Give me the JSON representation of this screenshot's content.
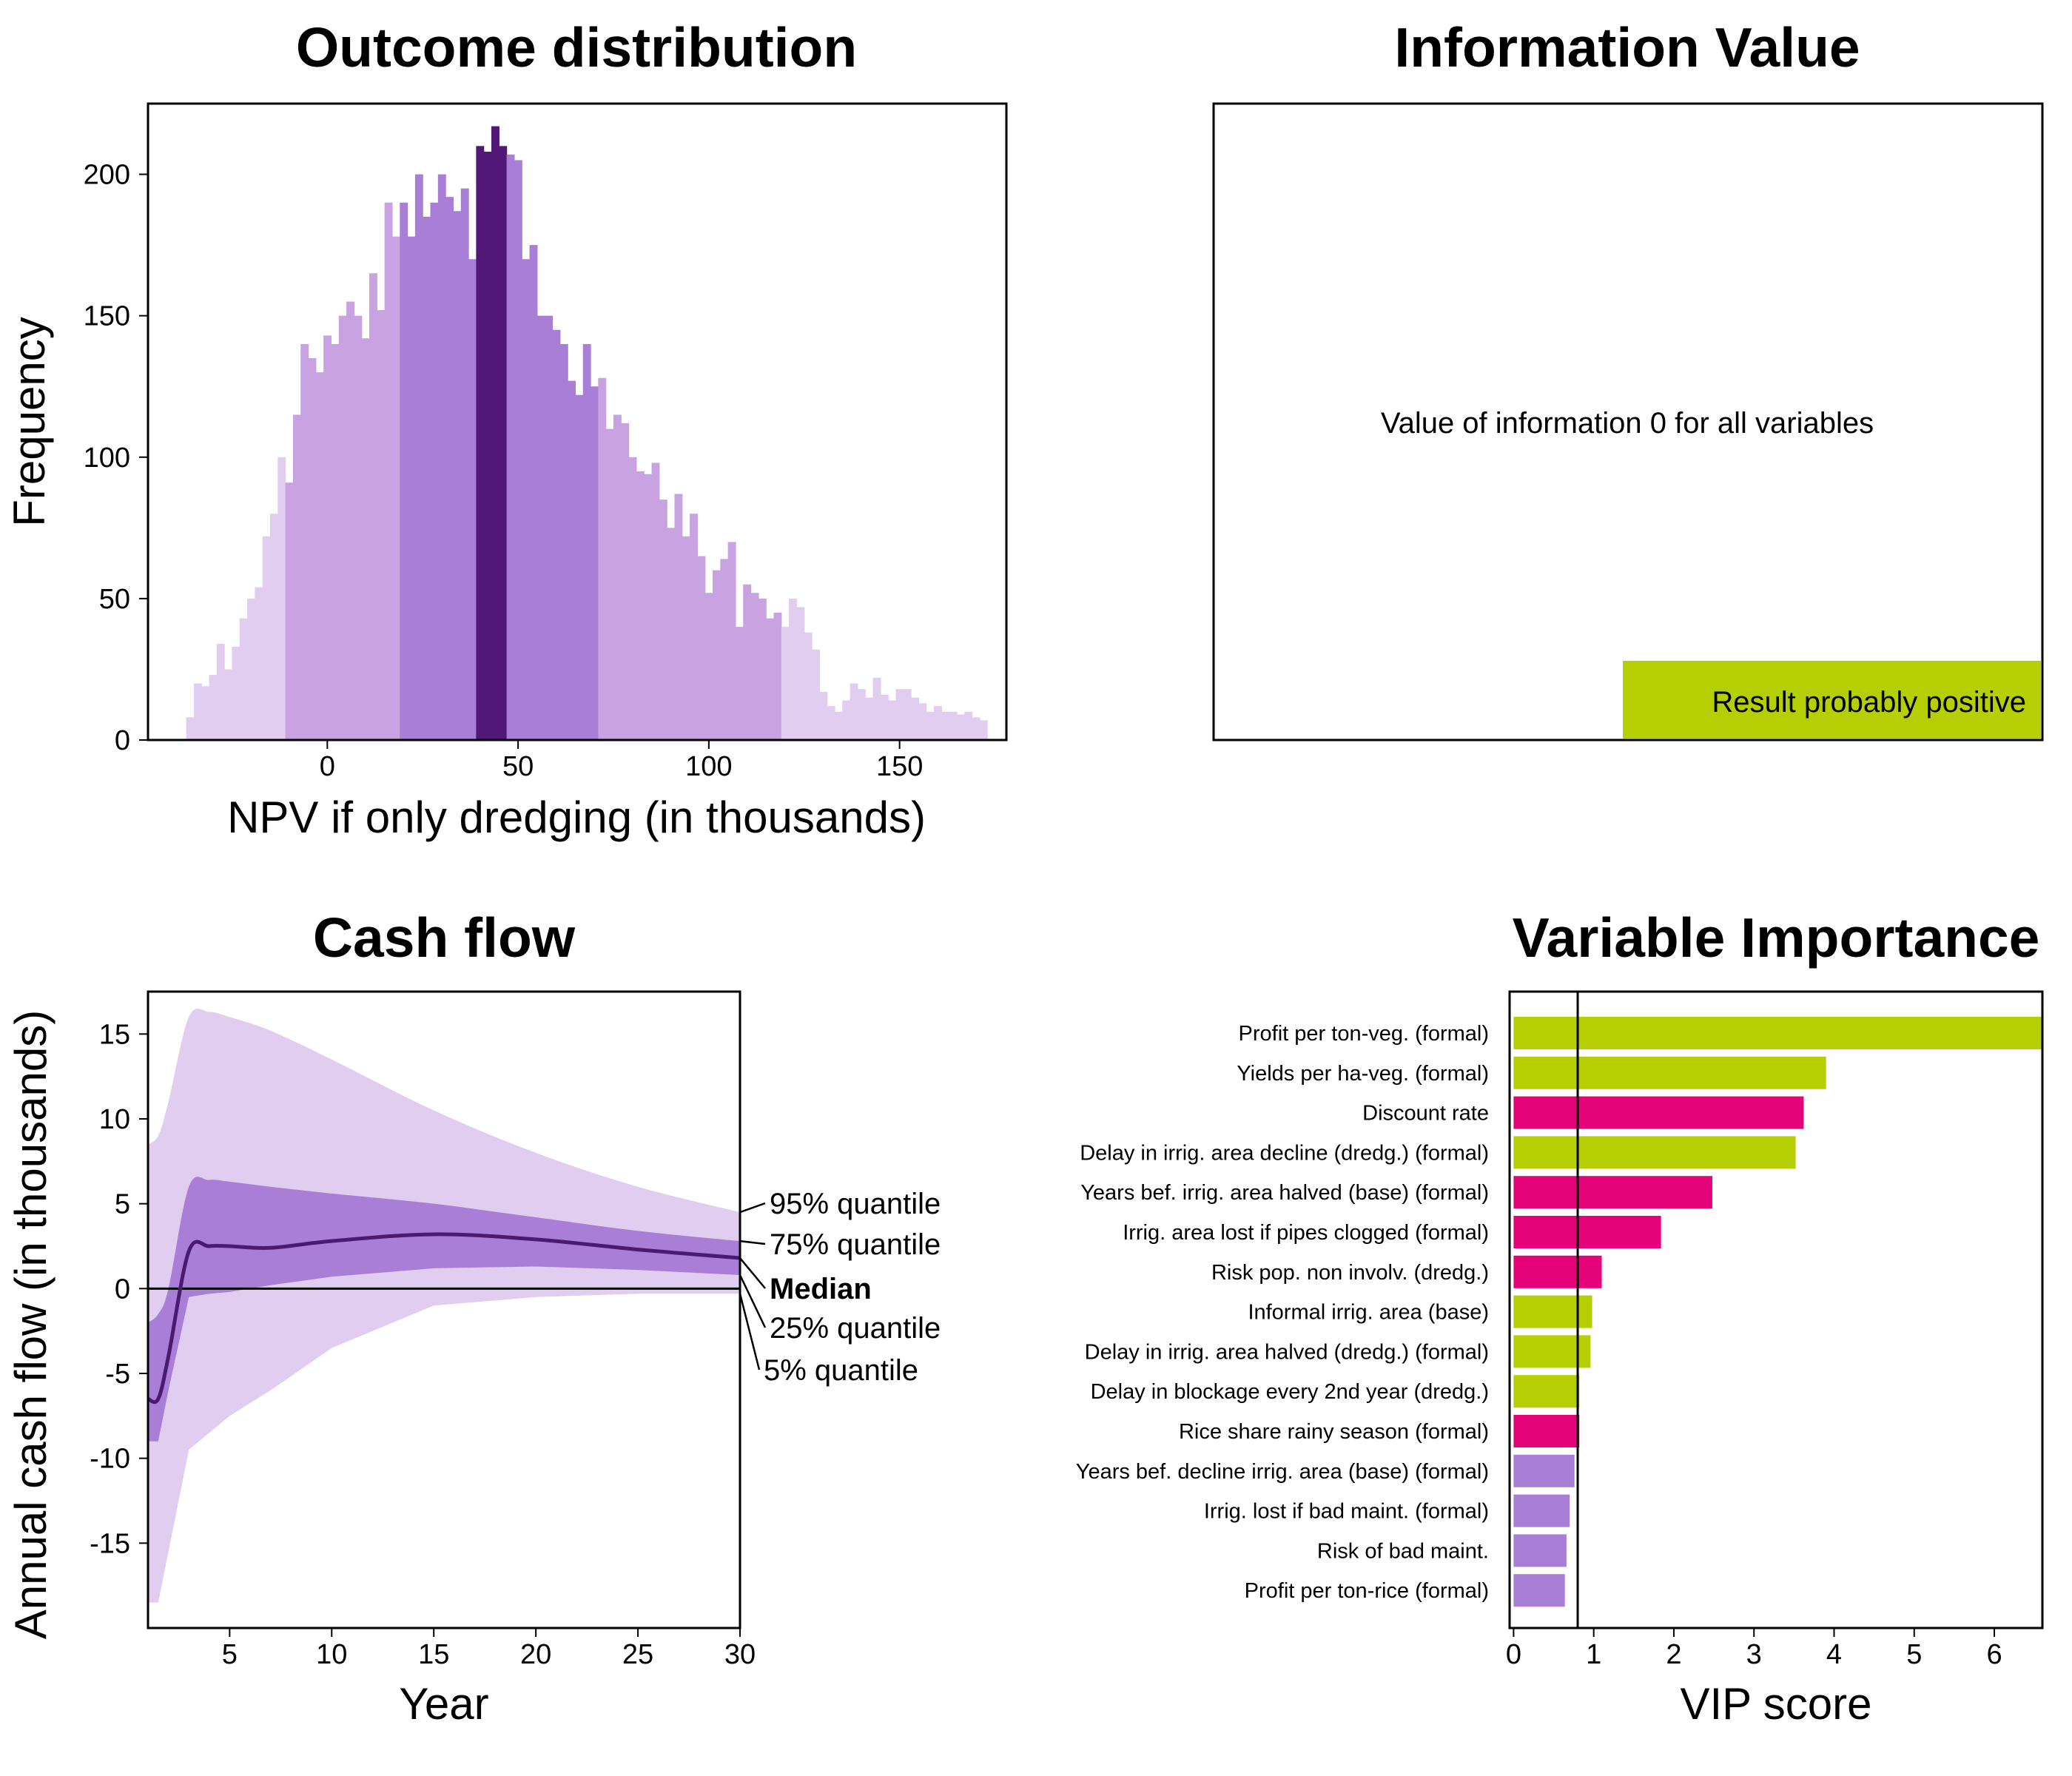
{
  "colors": {
    "hist_outer": "#e1cdef",
    "hist_mid": "#c8a2e1",
    "hist_inner": "#a97ed6",
    "hist_core": "#521878",
    "band_outer": "#e1cdef",
    "band_inner": "#a97ed6",
    "median_line": "#4a1a6e",
    "lime": "#b6cf05",
    "pink": "#e5037a",
    "purple": "#a97ed6"
  },
  "chart_data": [
    {
      "type": "bar",
      "title": "Outcome distribution",
      "xlabel": "NPV if only dredging (in thousands)",
      "ylabel": "Frequency",
      "xlim": [
        -47,
        178
      ],
      "ylim": [
        0,
        225
      ],
      "x_ticks": [
        0,
        50,
        100,
        150
      ],
      "y_ticks": [
        0,
        50,
        100,
        150,
        200
      ],
      "bin_start": -37,
      "bin_width": 2,
      "quantile_bounds": {
        "q05": -11,
        "q25": 18,
        "q45": 38,
        "q55": 48,
        "q75": 72,
        "q95": 120
      },
      "values": [
        8,
        20,
        19,
        23,
        34,
        25,
        33,
        43,
        50,
        54,
        72,
        80,
        100,
        91,
        115,
        140,
        135,
        130,
        143,
        140,
        150,
        155,
        150,
        142,
        165,
        152,
        190,
        178,
        190,
        178,
        200,
        185,
        190,
        200,
        192,
        187,
        195,
        170,
        210,
        208,
        217,
        210,
        207,
        205,
        170,
        175,
        150,
        150,
        145,
        140,
        127,
        122,
        140,
        125,
        128,
        110,
        115,
        112,
        100,
        95,
        94,
        98,
        85,
        75,
        87,
        72,
        80,
        65,
        52,
        60,
        64,
        70,
        40,
        55,
        52,
        50,
        43,
        45,
        40,
        50,
        47,
        38,
        32,
        17,
        12,
        10,
        14,
        20,
        18,
        15,
        22,
        16,
        14,
        18,
        18,
        15,
        13,
        10,
        12,
        10,
        10,
        9,
        10,
        8,
        7
      ],
      "annotations": []
    },
    {
      "type": "table",
      "title": "Information Value",
      "message": "Value of information 0 for all variables",
      "verdict": "Result probably positive"
    },
    {
      "type": "area",
      "title": "Cash flow",
      "xlabel": "Year",
      "ylabel": "Annual cash flow (in thousands)",
      "xlim": [
        1,
        30
      ],
      "ylim": [
        -20,
        17.5
      ],
      "x_ticks": [
        5,
        10,
        15,
        20,
        25,
        30
      ],
      "y_ticks": [
        -15,
        -10,
        -5,
        0,
        5,
        10,
        15
      ],
      "x": [
        1,
        1.5,
        2,
        3,
        4,
        5,
        7,
        10,
        15,
        20,
        25,
        30
      ],
      "series": [
        {
          "name": "95% quantile",
          "values": [
            8.5,
            9,
            11,
            16,
            16.3,
            16,
            15.2,
            13.5,
            10.5,
            8,
            6,
            4.5
          ]
        },
        {
          "name": "75% quantile",
          "values": [
            -2,
            -1.5,
            0,
            6,
            6.4,
            6.3,
            6,
            5.6,
            5,
            4.2,
            3.4,
            2.8
          ]
        },
        {
          "name": "Median",
          "values": [
            -6.5,
            -6.5,
            -4,
            2.2,
            2.5,
            2.5,
            2.4,
            2.8,
            3.2,
            2.9,
            2.3,
            1.8
          ]
        },
        {
          "name": "25% quantile",
          "values": [
            -9,
            -9,
            -6,
            -0.5,
            -0.3,
            -0.2,
            0.2,
            0.7,
            1.2,
            1.3,
            1.1,
            0.8
          ]
        },
        {
          "name": "5% quantile",
          "values": [
            -18.5,
            -18.5,
            -15.5,
            -9.5,
            -8.5,
            -7.5,
            -6,
            -3.5,
            -1,
            -0.5,
            -0.3,
            -0.3
          ]
        }
      ],
      "legend_labels": [
        "95% quantile",
        "75% quantile",
        "Median",
        "25% quantile",
        "5% quantile"
      ]
    },
    {
      "type": "bar",
      "title": "Variable Importance",
      "xlabel": "VIP score",
      "ylabel": "",
      "xlim": [
        -0.05,
        6.6
      ],
      "x_ticks": [
        0,
        1,
        2,
        3,
        4,
        5,
        6
      ],
      "threshold": 0.8,
      "categories": [
        "Profit per ton-veg. (formal)",
        "Yields per ha-veg. (formal)",
        "Discount rate",
        "Delay in irrig. area decline (dredg.) (formal)",
        "Years bef. irrig. area halved (base) (formal)",
        "Irrig. area lost if pipes clogged (formal)",
        "Risk pop. non involv. (dredg.)",
        "Informal irrig. area (base)",
        "Delay in irrig. area halved (dredg.) (formal)",
        "Delay in blockage every 2nd year (dredg.)",
        "Rice share rainy season (formal)",
        "Years bef. decline irrig. area (base) (formal)",
        "Irrig. lost if bad maint. (formal)",
        "Risk of bad maint.",
        "Profit per ton-rice (formal)"
      ],
      "values": [
        6.6,
        3.9,
        3.62,
        3.52,
        2.48,
        1.84,
        1.1,
        0.98,
        0.96,
        0.82,
        0.82,
        0.76,
        0.7,
        0.66,
        0.64
      ],
      "effect": [
        "positive",
        "positive",
        "negative",
        "positive",
        "negative",
        "negative",
        "negative",
        "positive",
        "positive",
        "positive",
        "negative",
        "none",
        "none",
        "none",
        "none"
      ]
    }
  ]
}
